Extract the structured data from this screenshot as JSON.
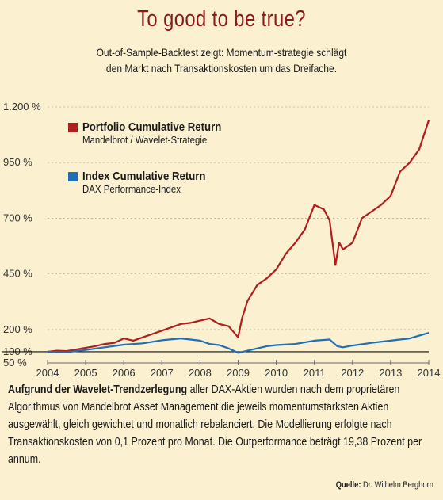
{
  "title": "To good to be true?",
  "subtitle": [
    "Out-of-Sample-Backtest zeigt: Momentum-strategie schlägt",
    "den Markt nach Transaktionskosten um das Dreifache."
  ],
  "colors": {
    "portfolio": "#b01e1e",
    "index": "#1f6fb8",
    "title": "#8b1a1a",
    "background": "#fbf0d0"
  },
  "legend": [
    {
      "name": "Portfolio Cumulative Return",
      "desc": "Mandelbrot / Wavelet-Strategie",
      "color": "#b01e1e"
    },
    {
      "name": "Index Cumulative Return",
      "desc": "DAX Performance-Index",
      "color": "#1f6fb8"
    }
  ],
  "body_text_lead": "Aufgrund der Wavelet-Trendzerlegung",
  "body_text_rest": " aller DAX-Aktien wurden nach dem proprietären Algorithmus von Mandelbrot Asset Management die jeweils momentumstärksten Aktien ausgewählt, gleich gewichtet und monatlich rebalanciert. Die Modellierung erfolgte nach Transaktionskosten von 0,1 Prozent pro Monat. Die Outperformance beträgt 19,38 Prozent per annum.",
  "source_label": "Quelle:",
  "source_value": "Dr. Wilhelm Berghorn",
  "chart_data": {
    "type": "line",
    "xlabel": "",
    "ylabel": "",
    "xlim": [
      2004,
      2014
    ],
    "ylim": [
      50,
      1200
    ],
    "x_ticks": [
      "2004",
      "2005",
      "2006",
      "2007",
      "2008",
      "2009",
      "2010",
      "2011",
      "2012",
      "2013",
      "2014"
    ],
    "y_ticks": [
      {
        "value": 1200,
        "label": "1.200 %"
      },
      {
        "value": 950,
        "label": "950 %"
      },
      {
        "value": 700,
        "label": "700 %"
      },
      {
        "value": 450,
        "label": "450 %"
      },
      {
        "value": 200,
        "label": "200 %"
      },
      {
        "value": 100,
        "label": "100 %"
      },
      {
        "value": 50,
        "label": "50 %"
      }
    ],
    "reference_line": 100,
    "series": [
      {
        "name": "Portfolio Cumulative Return",
        "x": [
          2004.0,
          2004.25,
          2004.5,
          2004.75,
          2005.0,
          2005.25,
          2005.5,
          2005.75,
          2006.0,
          2006.25,
          2006.5,
          2006.75,
          2007.0,
          2007.25,
          2007.5,
          2007.75,
          2008.0,
          2008.25,
          2008.5,
          2008.75,
          2009.0,
          2009.1,
          2009.25,
          2009.5,
          2009.75,
          2010.0,
          2010.25,
          2010.5,
          2010.75,
          2011.0,
          2011.25,
          2011.4,
          2011.55,
          2011.65,
          2011.75,
          2012.0,
          2012.25,
          2012.5,
          2012.75,
          2013.0,
          2013.25,
          2013.5,
          2013.75,
          2014.0
        ],
        "y": [
          100,
          105,
          103,
          110,
          118,
          125,
          135,
          140,
          160,
          150,
          165,
          180,
          195,
          210,
          225,
          230,
          240,
          250,
          225,
          215,
          165,
          250,
          330,
          400,
          430,
          470,
          540,
          590,
          650,
          760,
          740,
          690,
          490,
          590,
          560,
          590,
          700,
          730,
          760,
          800,
          910,
          950,
          1010,
          1140
        ]
      },
      {
        "name": "Index Cumulative Return",
        "x": [
          2004.0,
          2004.5,
          2005.0,
          2005.5,
          2006.0,
          2006.5,
          2007.0,
          2007.5,
          2008.0,
          2008.25,
          2008.5,
          2008.75,
          2009.0,
          2009.25,
          2009.5,
          2009.75,
          2010.0,
          2010.5,
          2011.0,
          2011.4,
          2011.6,
          2011.75,
          2012.0,
          2012.5,
          2013.0,
          2013.5,
          2014.0
        ],
        "y": [
          100,
          98,
          108,
          120,
          132,
          138,
          152,
          160,
          150,
          135,
          130,
          115,
          95,
          105,
          115,
          125,
          130,
          135,
          150,
          155,
          125,
          120,
          128,
          140,
          150,
          160,
          185
        ]
      }
    ]
  }
}
